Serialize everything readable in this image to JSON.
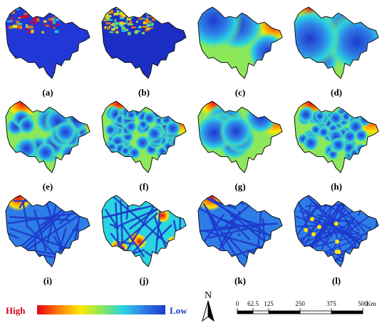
{
  "panels": [
    {
      "label": "(a)",
      "type": "raster"
    },
    {
      "label": "(b)",
      "type": "raster"
    },
    {
      "label": "(c)",
      "type": "distance"
    },
    {
      "label": "(d)",
      "type": "distance"
    },
    {
      "label": "(e)",
      "type": "distance"
    },
    {
      "label": "(f)",
      "type": "distance"
    },
    {
      "label": "(g)",
      "type": "distance"
    },
    {
      "label": "(h)",
      "type": "distance"
    },
    {
      "label": "(i)",
      "type": "network"
    },
    {
      "label": "(j)",
      "type": "network"
    },
    {
      "label": "(k)",
      "type": "network"
    },
    {
      "label": "(l)",
      "type": "network"
    }
  ],
  "legend": {
    "high_label": "High",
    "low_label": "Low",
    "colors": [
      "#e8001a",
      "#ff7a00",
      "#ffe800",
      "#8ce85a",
      "#2ad4e0",
      "#2e7de6",
      "#1e3acd"
    ]
  },
  "north_arrow": {
    "label": "N"
  },
  "scale_bar": {
    "ticks": [
      "0",
      "62.5",
      "125",
      "250",
      "375",
      "500"
    ],
    "unit": "Km"
  }
}
